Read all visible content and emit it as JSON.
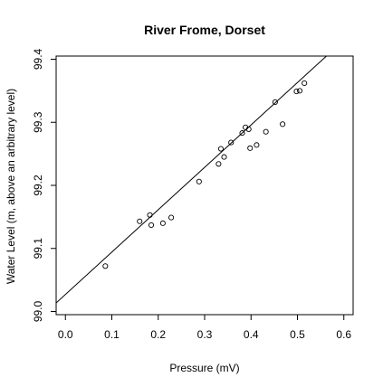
{
  "chart_data": {
    "type": "scatter",
    "title": "River Frome, Dorset",
    "xlabel": "Pressure (mV)",
    "ylabel": "Water Level (m, above an arbitrary level)",
    "xlim": [
      -0.02,
      0.62
    ],
    "ylim": [
      98.995,
      99.405
    ],
    "x_ticks": [
      0.0,
      0.1,
      0.2,
      0.3,
      0.4,
      0.5,
      0.6
    ],
    "x_tick_labels": [
      "0.0",
      "0.1",
      "0.2",
      "0.3",
      "0.4",
      "0.5",
      "0.6"
    ],
    "y_ticks": [
      99.0,
      99.1,
      99.2,
      99.3,
      99.4
    ],
    "y_tick_labels": [
      "99.0",
      "99.1",
      "99.2",
      "99.3",
      "99.4"
    ],
    "grid": false,
    "points": [
      {
        "x": 0.086,
        "y": 99.072
      },
      {
        "x": 0.16,
        "y": 99.143
      },
      {
        "x": 0.182,
        "y": 99.153
      },
      {
        "x": 0.185,
        "y": 99.137
      },
      {
        "x": 0.21,
        "y": 99.14
      },
      {
        "x": 0.228,
        "y": 99.149
      },
      {
        "x": 0.288,
        "y": 99.206
      },
      {
        "x": 0.33,
        "y": 99.234
      },
      {
        "x": 0.335,
        "y": 99.258
      },
      {
        "x": 0.342,
        "y": 99.245
      },
      {
        "x": 0.357,
        "y": 99.268
      },
      {
        "x": 0.381,
        "y": 99.283
      },
      {
        "x": 0.388,
        "y": 99.292
      },
      {
        "x": 0.395,
        "y": 99.289
      },
      {
        "x": 0.398,
        "y": 99.259
      },
      {
        "x": 0.412,
        "y": 99.264
      },
      {
        "x": 0.432,
        "y": 99.285
      },
      {
        "x": 0.452,
        "y": 99.332
      },
      {
        "x": 0.468,
        "y": 99.297
      },
      {
        "x": 0.498,
        "y": 99.349
      },
      {
        "x": 0.505,
        "y": 99.35
      },
      {
        "x": 0.515,
        "y": 99.362
      }
    ],
    "fit_line": {
      "intercept": 99.027,
      "slope": 0.672
    }
  }
}
